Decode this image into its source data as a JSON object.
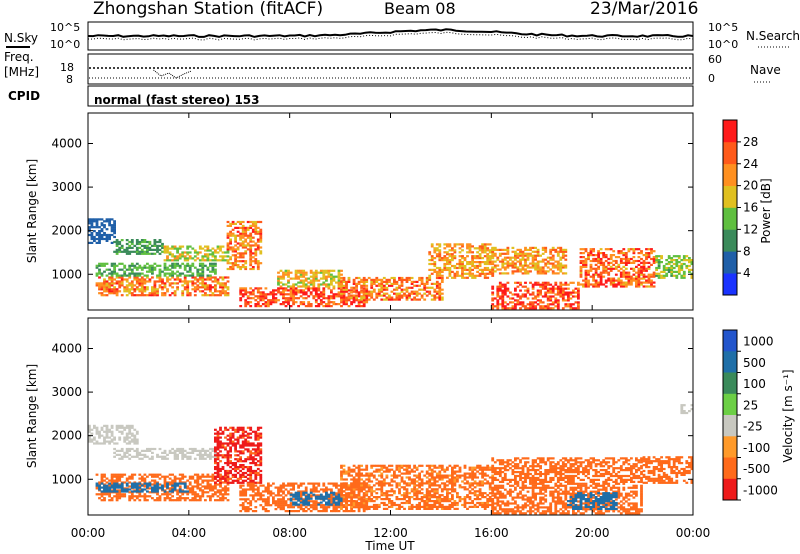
{
  "header": {
    "station": "Zhongshan Station (fitACF)",
    "beam": "Beam 08",
    "date": "23/Mar/2016"
  },
  "top_panels": {
    "nsky_label": "N.Sky",
    "nsky_ticks": [
      "10^5",
      "10^0"
    ],
    "nsearch_label": "N.Search",
    "freq_label_1": "Freq.",
    "freq_label_2": "[MHz]",
    "freq_ticks": [
      "18",
      "8"
    ],
    "nave_ticks": [
      "60",
      "0"
    ],
    "nave_label": "Nave",
    "cpid_label": "CPID",
    "cpid_text": "normal (fast stereo) 153"
  },
  "x_axis": {
    "label": "Time UT",
    "ticks": [
      "00:00",
      "04:00",
      "08:00",
      "12:00",
      "16:00",
      "20:00",
      "00:00"
    ]
  },
  "colors": {
    "power_scale": [
      "#1a33ff",
      "#1f5fa8",
      "#3a8a5a",
      "#5fbf3f",
      "#e0c020",
      "#ff9020",
      "#ff5a1a",
      "#ff1a1a"
    ],
    "velocity_scale": [
      "#2255cc",
      "#1f6fa8",
      "#3a8a5a",
      "#6ccf45",
      "#c8c8c0",
      "#ff9a2a",
      "#ff6a1a",
      "#ee1a1a"
    ]
  },
  "chart_data": [
    {
      "type": "heatmap",
      "panel": "power",
      "ylabel": "Slant Range [km]",
      "ylim": [
        180,
        4700
      ],
      "yticks": [
        "1000",
        "2000",
        "3000",
        "4000"
      ],
      "xlim_hours": [
        0,
        24
      ],
      "colorbar": {
        "label": "Power [dB]",
        "ticks": [
          "4",
          "8",
          "12",
          "16",
          "20",
          "24",
          "28"
        ],
        "range": [
          0,
          30
        ]
      },
      "echo_regions": [
        {
          "t0": 0.0,
          "t1": 1.0,
          "r0": 1700,
          "r1": 2250,
          "value": 6
        },
        {
          "t0": 1.0,
          "t1": 3.0,
          "r0": 1450,
          "r1": 1800,
          "value": 10
        },
        {
          "t0": 3.0,
          "t1": 5.5,
          "r0": 1300,
          "r1": 1650,
          "value": 16
        },
        {
          "t0": 5.5,
          "t1": 6.8,
          "r0": 1100,
          "r1": 2200,
          "value": 22
        },
        {
          "t0": 0.3,
          "t1": 5.5,
          "r0": 500,
          "r1": 950,
          "value": 22
        },
        {
          "t0": 0.3,
          "t1": 5.0,
          "r0": 950,
          "r1": 1250,
          "value": 12
        },
        {
          "t0": 6.0,
          "t1": 11.0,
          "r0": 250,
          "r1": 700,
          "value": 26
        },
        {
          "t0": 7.5,
          "t1": 10.0,
          "r0": 700,
          "r1": 1100,
          "value": 18
        },
        {
          "t0": 10.0,
          "t1": 14.0,
          "r0": 400,
          "r1": 900,
          "value": 22
        },
        {
          "t0": 13.5,
          "t1": 16.0,
          "r0": 900,
          "r1": 1700,
          "value": 20
        },
        {
          "t0": 16.0,
          "t1": 19.5,
          "r0": 200,
          "r1": 800,
          "value": 26
        },
        {
          "t0": 16.0,
          "t1": 19.0,
          "r0": 1000,
          "r1": 1600,
          "value": 20
        },
        {
          "t0": 19.5,
          "t1": 22.5,
          "r0": 700,
          "r1": 1600,
          "value": 24
        },
        {
          "t0": 22.5,
          "t1": 24.0,
          "r0": 900,
          "r1": 1400,
          "value": 14
        }
      ]
    },
    {
      "type": "heatmap",
      "panel": "velocity",
      "ylabel": "Slant Range [km]",
      "ylim": [
        180,
        4700
      ],
      "yticks": [
        "1000",
        "2000",
        "3000",
        "4000"
      ],
      "xlim_hours": [
        0,
        24
      ],
      "colorbar": {
        "label": "Velocity [m s⁻¹]",
        "ticks": [
          "1000",
          "500",
          "100",
          "25",
          "-25",
          "-100",
          "-500",
          "-1000"
        ]
      },
      "echo_regions": [
        {
          "t0": 0.0,
          "t1": 2.0,
          "r0": 1800,
          "r1": 2250,
          "value": 0
        },
        {
          "t0": 1.0,
          "t1": 5.0,
          "r0": 1450,
          "r1": 1700,
          "value": 0
        },
        {
          "t0": 0.3,
          "t1": 5.5,
          "r0": 500,
          "r1": 1100,
          "value": -200
        },
        {
          "t0": 0.3,
          "t1": 4.0,
          "r0": 700,
          "r1": 900,
          "value": 150
        },
        {
          "t0": 5.0,
          "t1": 6.8,
          "r0": 900,
          "r1": 2200,
          "value": -600
        },
        {
          "t0": 6.0,
          "t1": 11.0,
          "r0": 250,
          "r1": 900,
          "value": -200
        },
        {
          "t0": 8.0,
          "t1": 10.0,
          "r0": 400,
          "r1": 700,
          "value": 150
        },
        {
          "t0": 10.0,
          "t1": 16.0,
          "r0": 300,
          "r1": 1300,
          "value": -120
        },
        {
          "t0": 16.0,
          "t1": 22.0,
          "r0": 200,
          "r1": 1500,
          "value": -200
        },
        {
          "t0": 19.0,
          "t1": 21.0,
          "r0": 300,
          "r1": 700,
          "value": 300
        },
        {
          "t0": 22.0,
          "t1": 24.0,
          "r0": 900,
          "r1": 1500,
          "value": -150
        },
        {
          "t0": 23.5,
          "t1": 24.0,
          "r0": 2500,
          "r1": 2700,
          "value": 0
        }
      ]
    }
  ]
}
